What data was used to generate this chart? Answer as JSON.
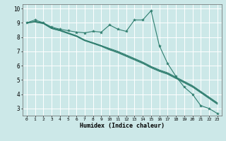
{
  "xlabel": "Humidex (Indice chaleur)",
  "bg_color": "#cce8e8",
  "grid_color": "#ffffff",
  "line_color": "#2e7d6e",
  "xlim": [
    -0.5,
    23.5
  ],
  "ylim": [
    2.5,
    10.3
  ],
  "yticks": [
    3,
    4,
    5,
    6,
    7,
    8,
    9,
    10
  ],
  "xticks": [
    0,
    1,
    2,
    3,
    4,
    5,
    6,
    7,
    8,
    9,
    10,
    11,
    12,
    13,
    14,
    15,
    16,
    17,
    18,
    19,
    20,
    21,
    22,
    23
  ],
  "series": [
    {
      "x": [
        0,
        1,
        2,
        3,
        4,
        5,
        6,
        7,
        8,
        9,
        10,
        11,
        12,
        13,
        14,
        15,
        16,
        17,
        18,
        19,
        20,
        21,
        22,
        23
      ],
      "y": [
        9.0,
        9.2,
        9.0,
        8.7,
        8.55,
        8.45,
        8.35,
        8.3,
        8.4,
        8.35,
        8.85,
        8.55,
        8.4,
        9.2,
        9.2,
        9.85,
        7.4,
        6.15,
        5.25,
        4.5,
        4.0,
        3.2,
        3.0,
        2.65
      ],
      "marker": true
    },
    {
      "x": [
        0,
        1,
        2,
        3,
        4,
        5,
        6,
        7,
        8,
        9,
        10,
        11,
        12,
        13,
        14,
        15,
        16,
        17,
        18,
        19,
        20,
        21,
        22,
        23
      ],
      "y": [
        9.0,
        9.05,
        8.95,
        8.6,
        8.45,
        8.25,
        8.05,
        7.75,
        7.55,
        7.35,
        7.1,
        6.9,
        6.65,
        6.4,
        6.15,
        5.85,
        5.6,
        5.4,
        5.1,
        4.8,
        4.5,
        4.1,
        3.7,
        3.3
      ],
      "marker": false
    },
    {
      "x": [
        0,
        1,
        2,
        3,
        4,
        5,
        6,
        7,
        8,
        9,
        10,
        11,
        12,
        13,
        14,
        15,
        16,
        17,
        18,
        19,
        20,
        21,
        22,
        23
      ],
      "y": [
        9.0,
        9.05,
        8.95,
        8.6,
        8.45,
        8.25,
        8.05,
        7.75,
        7.6,
        7.4,
        7.15,
        6.95,
        6.7,
        6.45,
        6.2,
        5.9,
        5.65,
        5.45,
        5.15,
        4.85,
        4.55,
        4.15,
        3.75,
        3.35
      ],
      "marker": false
    },
    {
      "x": [
        0,
        1,
        2,
        3,
        4,
        5,
        6,
        7,
        8,
        9,
        10,
        11,
        12,
        13,
        14,
        15,
        16,
        17,
        18,
        19,
        20,
        21,
        22,
        23
      ],
      "y": [
        9.0,
        9.1,
        9.0,
        8.65,
        8.5,
        8.3,
        8.1,
        7.8,
        7.6,
        7.4,
        7.2,
        7.0,
        6.75,
        6.5,
        6.25,
        5.95,
        5.7,
        5.5,
        5.2,
        4.9,
        4.6,
        4.2,
        3.8,
        3.4
      ],
      "marker": false
    }
  ]
}
